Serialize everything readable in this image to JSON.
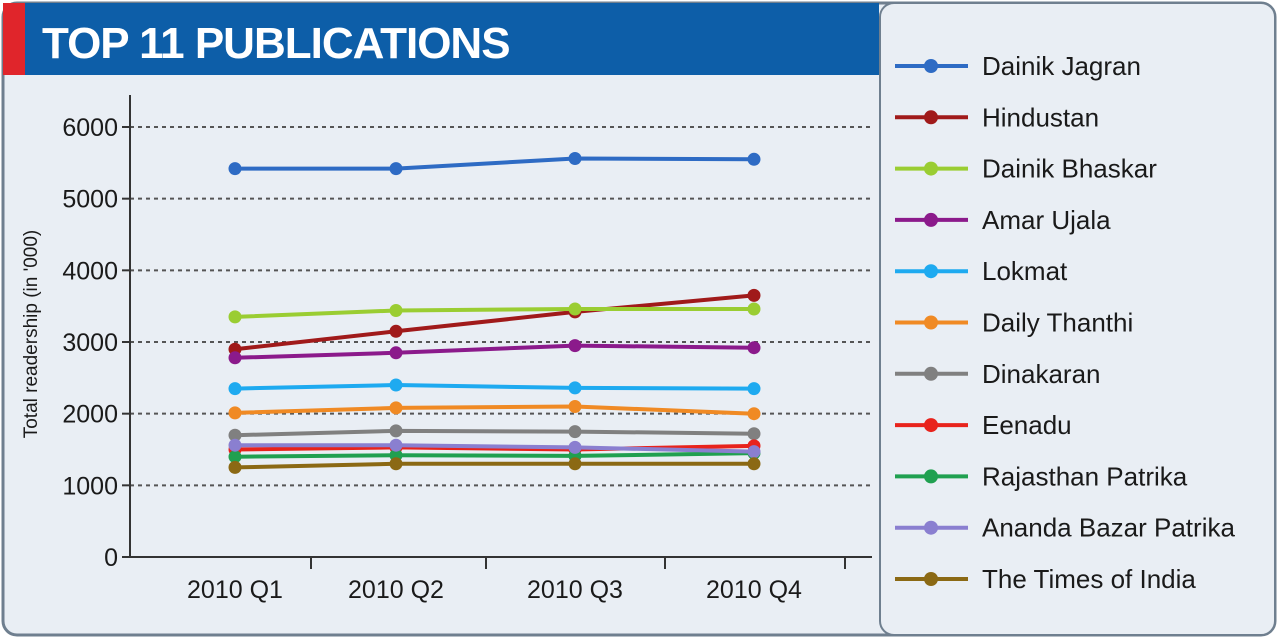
{
  "title": "TOP 11 PUBLICATIONS",
  "colors": {
    "header_bg": "#0d5ea8",
    "header_accent": "#e0252b",
    "plot_bg": "#e9eef4",
    "legend_bg": "#e9eef4",
    "frame": "#6f7f8f",
    "grid": "#555555"
  },
  "chart_data": {
    "type": "line",
    "title": "TOP 11 PUBLICATIONS",
    "xlabel": "",
    "ylabel": "Total readership (in '000)",
    "categories": [
      "2010 Q1",
      "2010 Q2",
      "2010 Q3",
      "2010 Q4"
    ],
    "ylim": [
      0,
      6000
    ],
    "yticks": [
      "0",
      "1000",
      "2000",
      "3000",
      "4000",
      "5000",
      "6000"
    ],
    "grid": true,
    "legend_position": "right",
    "series": [
      {
        "name": "Dainik Jagran",
        "color": "#2e6bc4",
        "values": [
          5420,
          5420,
          5560,
          5550
        ]
      },
      {
        "name": "Hindustan",
        "color": "#a01a1a",
        "values": [
          2900,
          3150,
          3420,
          3650
        ]
      },
      {
        "name": "Dainik Bhaskar",
        "color": "#9acd32",
        "values": [
          3350,
          3440,
          3460,
          3460
        ]
      },
      {
        "name": "Amar Ujala",
        "color": "#8b1a8b",
        "values": [
          2780,
          2850,
          2950,
          2920
        ]
      },
      {
        "name": "Lokmat",
        "color": "#1eaaf0",
        "values": [
          2350,
          2400,
          2360,
          2350
        ]
      },
      {
        "name": "Daily Thanthi",
        "color": "#f08a24",
        "values": [
          2010,
          2080,
          2100,
          2000
        ]
      },
      {
        "name": "Dinakaran",
        "color": "#808080",
        "values": [
          1700,
          1760,
          1750,
          1720
        ]
      },
      {
        "name": "Eenadu",
        "color": "#e8231c",
        "values": [
          1500,
          1530,
          1500,
          1550
        ]
      },
      {
        "name": "Rajasthan Patrika",
        "color": "#20a050",
        "values": [
          1400,
          1420,
          1410,
          1450
        ]
      },
      {
        "name": "Ananda Bazar Patrika",
        "color": "#8a7fd0",
        "values": [
          1560,
          1560,
          1530,
          1470
        ]
      },
      {
        "name": "The Times of India",
        "color": "#8b6914",
        "values": [
          1250,
          1300,
          1300,
          1300
        ]
      }
    ]
  }
}
